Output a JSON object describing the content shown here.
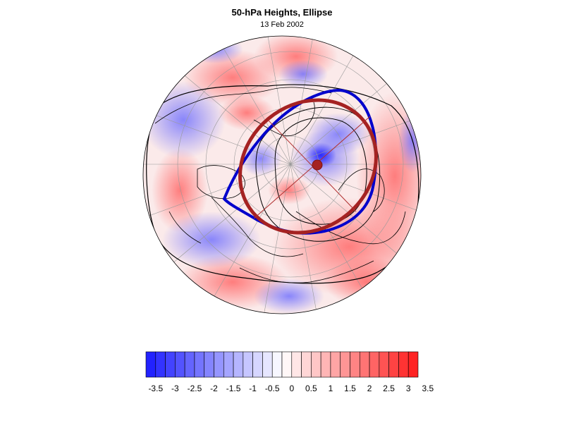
{
  "title": "50-hPa Heights, Ellipse",
  "subtitle": "13 Feb 2002",
  "colorbar": {
    "labels": [
      "-3.5",
      "-3",
      "-2.5",
      "-2",
      "-1.5",
      "-1",
      "-0.5",
      "0",
      "0.5",
      "1",
      "1.5",
      "2",
      "2.5",
      "3",
      "3.5"
    ],
    "min_color": "#1a1aff",
    "mid_color": "#ffffff",
    "max_color": "#ff1a1a"
  },
  "colors": {
    "blue_contour": "#0000cc",
    "red_ellipse": "#a52222",
    "axis_lines": "#b03030",
    "coastline": "#000000",
    "grid": "#9a9a9a"
  },
  "map": {
    "projection": "polar-stereographic",
    "hemisphere": "north",
    "field": "anomaly (red positive, blue negative)"
  }
}
